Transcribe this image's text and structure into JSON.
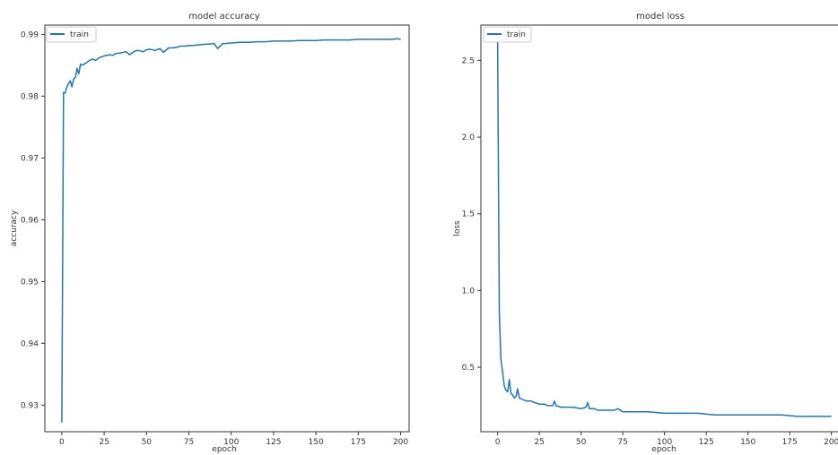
{
  "figure": {
    "line_color": "#1f77b4",
    "axis_color": "#333333",
    "background": "#ffffff"
  },
  "chart_data": [
    {
      "type": "line",
      "title": "model accuracy",
      "xlabel": "epoch",
      "ylabel": "accuracy",
      "xlim": [
        -10,
        205
      ],
      "ylim": [
        0.9257,
        0.9915
      ],
      "x_ticks": [
        0,
        25,
        50,
        75,
        100,
        125,
        150,
        175,
        200
      ],
      "x_tick_labels": [
        "0",
        "25",
        "50",
        "75",
        "100",
        "125",
        "150",
        "175",
        "200"
      ],
      "y_ticks": [
        0.93,
        0.94,
        0.95,
        0.96,
        0.97,
        0.98,
        0.99
      ],
      "y_tick_labels": [
        "0.93",
        "0.94",
        "0.95",
        "0.96",
        "0.97",
        "0.98",
        "0.99"
      ],
      "grid": false,
      "legend": "upper-left",
      "series": [
        {
          "name": "train",
          "x": [
            0,
            1,
            2,
            3,
            4,
            5,
            6,
            7,
            8,
            9,
            10,
            11,
            12,
            14,
            16,
            18,
            20,
            22,
            25,
            28,
            30,
            32,
            35,
            38,
            40,
            43,
            45,
            48,
            50,
            52,
            55,
            58,
            60,
            63,
            65,
            68,
            70,
            73,
            75,
            78,
            80,
            85,
            90,
            92,
            95,
            100,
            105,
            110,
            115,
            120,
            125,
            130,
            135,
            140,
            145,
            150,
            155,
            160,
            165,
            170,
            175,
            180,
            185,
            190,
            195,
            198,
            200
          ],
          "values": [
            0.9272,
            0.9806,
            0.9805,
            0.9815,
            0.982,
            0.9825,
            0.9815,
            0.9828,
            0.983,
            0.9845,
            0.9836,
            0.9852,
            0.985,
            0.9853,
            0.9857,
            0.986,
            0.9858,
            0.9862,
            0.9865,
            0.9867,
            0.9866,
            0.9869,
            0.987,
            0.9872,
            0.9867,
            0.9873,
            0.9874,
            0.9872,
            0.9875,
            0.9876,
            0.9874,
            0.9877,
            0.9871,
            0.9878,
            0.9878,
            0.9879,
            0.9881,
            0.9881,
            0.9882,
            0.9882,
            0.9883,
            0.9884,
            0.9885,
            0.9877,
            0.9885,
            0.9886,
            0.9887,
            0.9887,
            0.9888,
            0.9888,
            0.9889,
            0.9889,
            0.9889,
            0.989,
            0.989,
            0.989,
            0.9891,
            0.9891,
            0.9891,
            0.9891,
            0.9892,
            0.9892,
            0.9892,
            0.9892,
            0.9892,
            0.9893,
            0.9892
          ]
        }
      ]
    },
    {
      "type": "line",
      "title": "model loss",
      "xlabel": "epoch",
      "ylabel": "loss",
      "xlim": [
        -10,
        205
      ],
      "ylim": [
        0.08,
        2.73
      ],
      "x_ticks": [
        0,
        25,
        50,
        75,
        100,
        125,
        150,
        175,
        200
      ],
      "x_tick_labels": [
        "0",
        "25",
        "50",
        "75",
        "100",
        "125",
        "150",
        "175",
        "200"
      ],
      "y_ticks": [
        0.5,
        1.0,
        1.5,
        2.0,
        2.5
      ],
      "y_tick_labels": [
        "0.5",
        "1.0",
        "1.5",
        "2.0",
        "2.5"
      ],
      "grid": false,
      "legend": "upper-left",
      "series": [
        {
          "name": "train",
          "x": [
            0,
            1,
            2,
            3,
            4,
            5,
            6,
            7,
            8,
            9,
            10,
            11,
            12,
            13,
            15,
            17,
            20,
            22,
            25,
            28,
            30,
            33,
            34,
            35,
            38,
            40,
            45,
            50,
            53,
            54,
            55,
            58,
            60,
            65,
            70,
            72,
            75,
            80,
            90,
            100,
            110,
            120,
            130,
            140,
            150,
            160,
            170,
            180,
            190,
            198,
            200
          ],
          "values": [
            2.65,
            0.86,
            0.55,
            0.47,
            0.38,
            0.35,
            0.34,
            0.42,
            0.33,
            0.32,
            0.3,
            0.31,
            0.36,
            0.3,
            0.29,
            0.28,
            0.28,
            0.27,
            0.26,
            0.26,
            0.25,
            0.25,
            0.28,
            0.25,
            0.24,
            0.24,
            0.24,
            0.23,
            0.24,
            0.27,
            0.23,
            0.23,
            0.22,
            0.22,
            0.22,
            0.23,
            0.21,
            0.21,
            0.21,
            0.2,
            0.2,
            0.2,
            0.19,
            0.19,
            0.19,
            0.19,
            0.19,
            0.18,
            0.18,
            0.18,
            0.18
          ]
        }
      ]
    }
  ]
}
